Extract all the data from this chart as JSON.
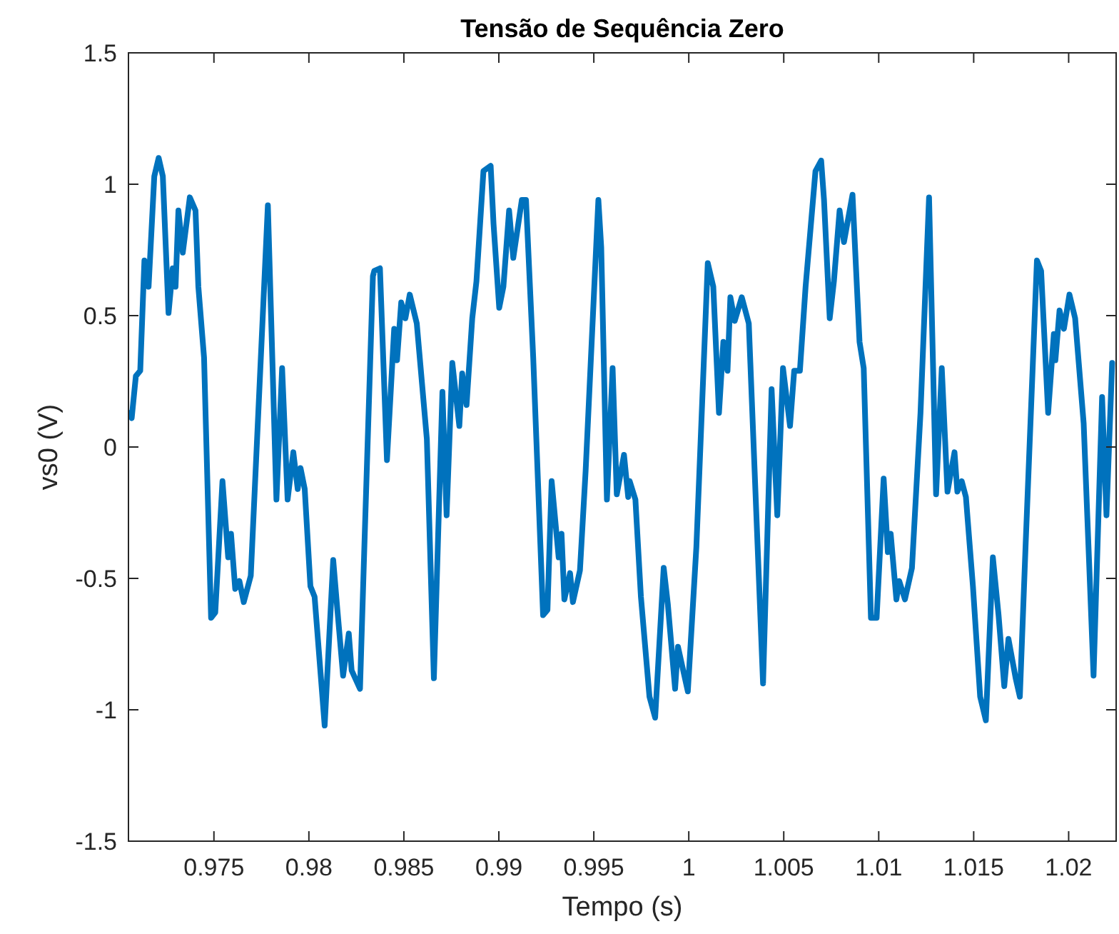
{
  "chart_data": {
    "type": "line",
    "title": "Tensão de Sequência Zero",
    "xlabel": "Tempo (s)",
    "ylabel": "vs0 (V)",
    "xlim": [
      0.9705,
      1.0225
    ],
    "ylim": [
      -1.5,
      1.5
    ],
    "xticks": [
      0.975,
      0.98,
      0.985,
      0.99,
      0.995,
      1,
      1.005,
      1.01,
      1.015,
      1.02
    ],
    "yticks": [
      -1.5,
      -1,
      -0.5,
      0,
      0.5,
      1,
      1.5
    ],
    "x": [
      0.97055,
      0.97067,
      0.97089,
      0.97112,
      0.97134,
      0.97156,
      0.97186,
      0.97209,
      0.97231,
      0.97261,
      0.97283,
      0.97298,
      0.97313,
      0.97336,
      0.97373,
      0.97403,
      0.97418,
      0.97448,
      0.97485,
      0.97507,
      0.97545,
      0.97575,
      0.9759,
      0.97612,
      0.97634,
      0.97657,
      0.97694,
      0.97784,
      0.97829,
      0.97859,
      0.97888,
      0.97918,
      0.97941,
      0.97956,
      0.97978,
      0.98008,
      0.9803,
      0.98083,
      0.98128,
      0.9815,
      0.9818,
      0.9821,
      0.98225,
      0.98269,
      0.98292,
      0.98337,
      0.98344,
      0.98374,
      0.98411,
      0.98449,
      0.98464,
      0.98486,
      0.98508,
      0.98531,
      0.98568,
      0.98621,
      0.98658,
      0.98703,
      0.98725,
      0.98755,
      0.98792,
      0.98807,
      0.9883,
      0.9886,
      0.98882,
      0.98919,
      0.98957,
      0.98972,
      0.99002,
      0.99024,
      0.99054,
      0.99076,
      0.99121,
      0.99143,
      0.99181,
      0.99233,
      0.99256,
      0.99278,
      0.99315,
      0.9933,
      0.99345,
      0.99375,
      0.9939,
      0.99427,
      0.99457,
      0.99524,
      0.99539,
      0.99569,
      0.99599,
      0.99621,
      0.99659,
      0.99681,
      0.99689,
      0.99719,
      0.99748,
      0.99793,
      0.99823,
      0.99868,
      0.9989,
      0.99928,
      0.99943,
      0.99995,
      1.0004,
      1.001,
      1.00129,
      1.00159,
      1.00182,
      1.00204,
      1.00219,
      1.00242,
      1.00279,
      1.00316,
      1.00391,
      1.00436,
      1.00466,
      1.00496,
      1.00533,
      1.00555,
      1.00585,
      1.00615,
      1.00667,
      1.00697,
      1.00712,
      1.00742,
      1.00764,
      1.00794,
      1.00817,
      1.00862,
      1.00899,
      1.00921,
      1.00959,
      1.00989,
      1.01026,
      1.01048,
      1.01063,
      1.01093,
      1.01108,
      1.01138,
      1.01175,
      1.0122,
      1.01265,
      1.01302,
      1.01332,
      1.01362,
      1.01399,
      1.01414,
      1.01437,
      1.01459,
      1.01496,
      1.01534,
      1.01564,
      1.01601,
      1.01631,
      1.01661,
      1.01683,
      1.01721,
      1.01743,
      1.01773,
      1.01833,
      1.01855,
      1.01892,
      1.01922,
      1.0193,
      1.01952,
      1.01975,
      1.02004,
      1.02034,
      1.02079,
      1.02131,
      1.02176,
      1.02199,
      1.02229
    ],
    "series": [
      {
        "color": "#0072bd",
        "values": [
          0.13,
          0.11,
          0.27,
          0.29,
          0.71,
          0.61,
          1.03,
          1.1,
          1.03,
          0.51,
          0.68,
          0.61,
          0.9,
          0.74,
          0.95,
          0.9,
          0.61,
          0.34,
          -0.65,
          -0.63,
          -0.13,
          -0.42,
          -0.33,
          -0.54,
          -0.51,
          -0.59,
          -0.49,
          0.92,
          -0.2,
          0.3,
          -0.2,
          -0.02,
          -0.16,
          -0.08,
          -0.16,
          -0.53,
          -0.57,
          -1.06,
          -0.43,
          -0.62,
          -0.87,
          -0.71,
          -0.85,
          -0.92,
          -0.38,
          0.65,
          0.67,
          0.68,
          -0.05,
          0.45,
          0.33,
          0.55,
          0.49,
          0.58,
          0.47,
          0.03,
          -0.88,
          0.21,
          -0.26,
          0.32,
          0.08,
          0.28,
          0.16,
          0.49,
          0.63,
          1.05,
          1.07,
          0.85,
          0.53,
          0.61,
          0.9,
          0.72,
          0.94,
          0.94,
          0.34,
          -0.64,
          -0.62,
          -0.13,
          -0.42,
          -0.33,
          -0.58,
          -0.48,
          -0.59,
          -0.47,
          -0.09,
          0.94,
          0.76,
          -0.2,
          0.3,
          -0.18,
          -0.03,
          -0.19,
          -0.13,
          -0.2,
          -0.57,
          -0.95,
          -1.03,
          -0.46,
          -0.6,
          -0.92,
          -0.76,
          -0.93,
          -0.38,
          0.7,
          0.61,
          0.13,
          0.4,
          0.29,
          0.57,
          0.48,
          0.57,
          0.47,
          -0.9,
          0.22,
          -0.26,
          0.3,
          0.08,
          0.29,
          0.29,
          0.61,
          1.05,
          1.09,
          0.94,
          0.49,
          0.63,
          0.9,
          0.78,
          0.96,
          0.4,
          0.3,
          -0.65,
          -0.65,
          -0.12,
          -0.4,
          -0.33,
          -0.58,
          -0.51,
          -0.58,
          -0.46,
          0.13,
          0.95,
          -0.18,
          0.3,
          -0.17,
          -0.02,
          -0.17,
          -0.13,
          -0.19,
          -0.53,
          -0.95,
          -1.04,
          -0.42,
          -0.64,
          -0.91,
          -0.73,
          -0.88,
          -0.95,
          -0.38,
          0.71,
          0.67,
          0.13,
          0.43,
          0.33,
          0.52,
          0.45,
          0.58,
          0.49,
          0.09,
          -0.87,
          0.19,
          -0.26,
          0.32
        ]
      }
    ]
  }
}
